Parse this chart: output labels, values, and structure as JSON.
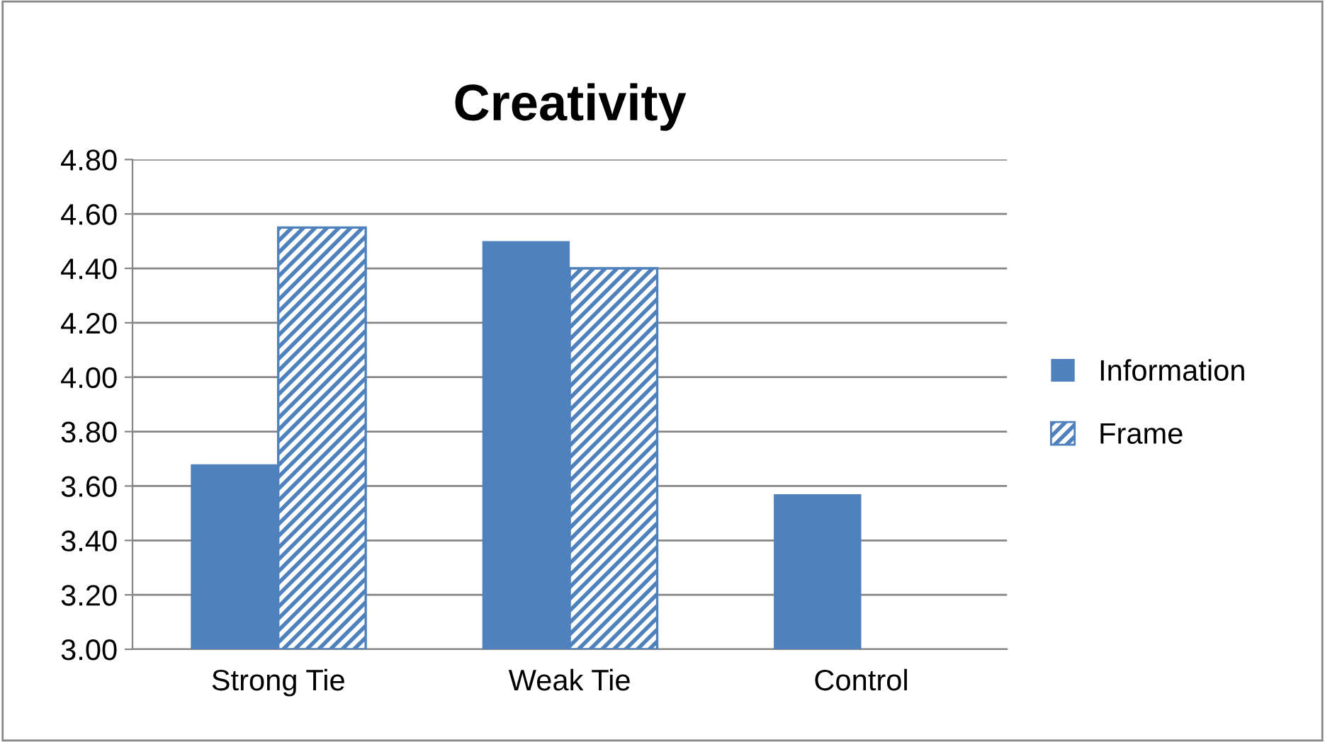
{
  "chart_data": {
    "type": "bar",
    "title": "Creativity",
    "categories": [
      "Strong Tie",
      "Weak Tie",
      "Control"
    ],
    "series": [
      {
        "name": "Information",
        "color": "#4f81bd",
        "values": [
          3.68,
          4.5,
          3.57
        ]
      },
      {
        "name": "Frame",
        "color": "#4f81bd",
        "values": [
          4.55,
          4.4,
          null
        ]
      }
    ],
    "ylim": [
      3.0,
      4.8
    ],
    "yticks": [
      {
        "value": 3.0,
        "label": "3.00"
      },
      {
        "value": 3.2,
        "label": "3.20"
      },
      {
        "value": 3.4,
        "label": "3.40"
      },
      {
        "value": 3.6,
        "label": "3.60"
      },
      {
        "value": 3.8,
        "label": "3.80"
      },
      {
        "value": 4.0,
        "label": "4.00"
      },
      {
        "value": 4.2,
        "label": "4.20"
      },
      {
        "value": 4.4,
        "label": "4.40"
      },
      {
        "value": 4.6,
        "label": "4.60"
      },
      {
        "value": 4.8,
        "label": "4.80"
      }
    ],
    "grid": "y",
    "legend": "right"
  }
}
